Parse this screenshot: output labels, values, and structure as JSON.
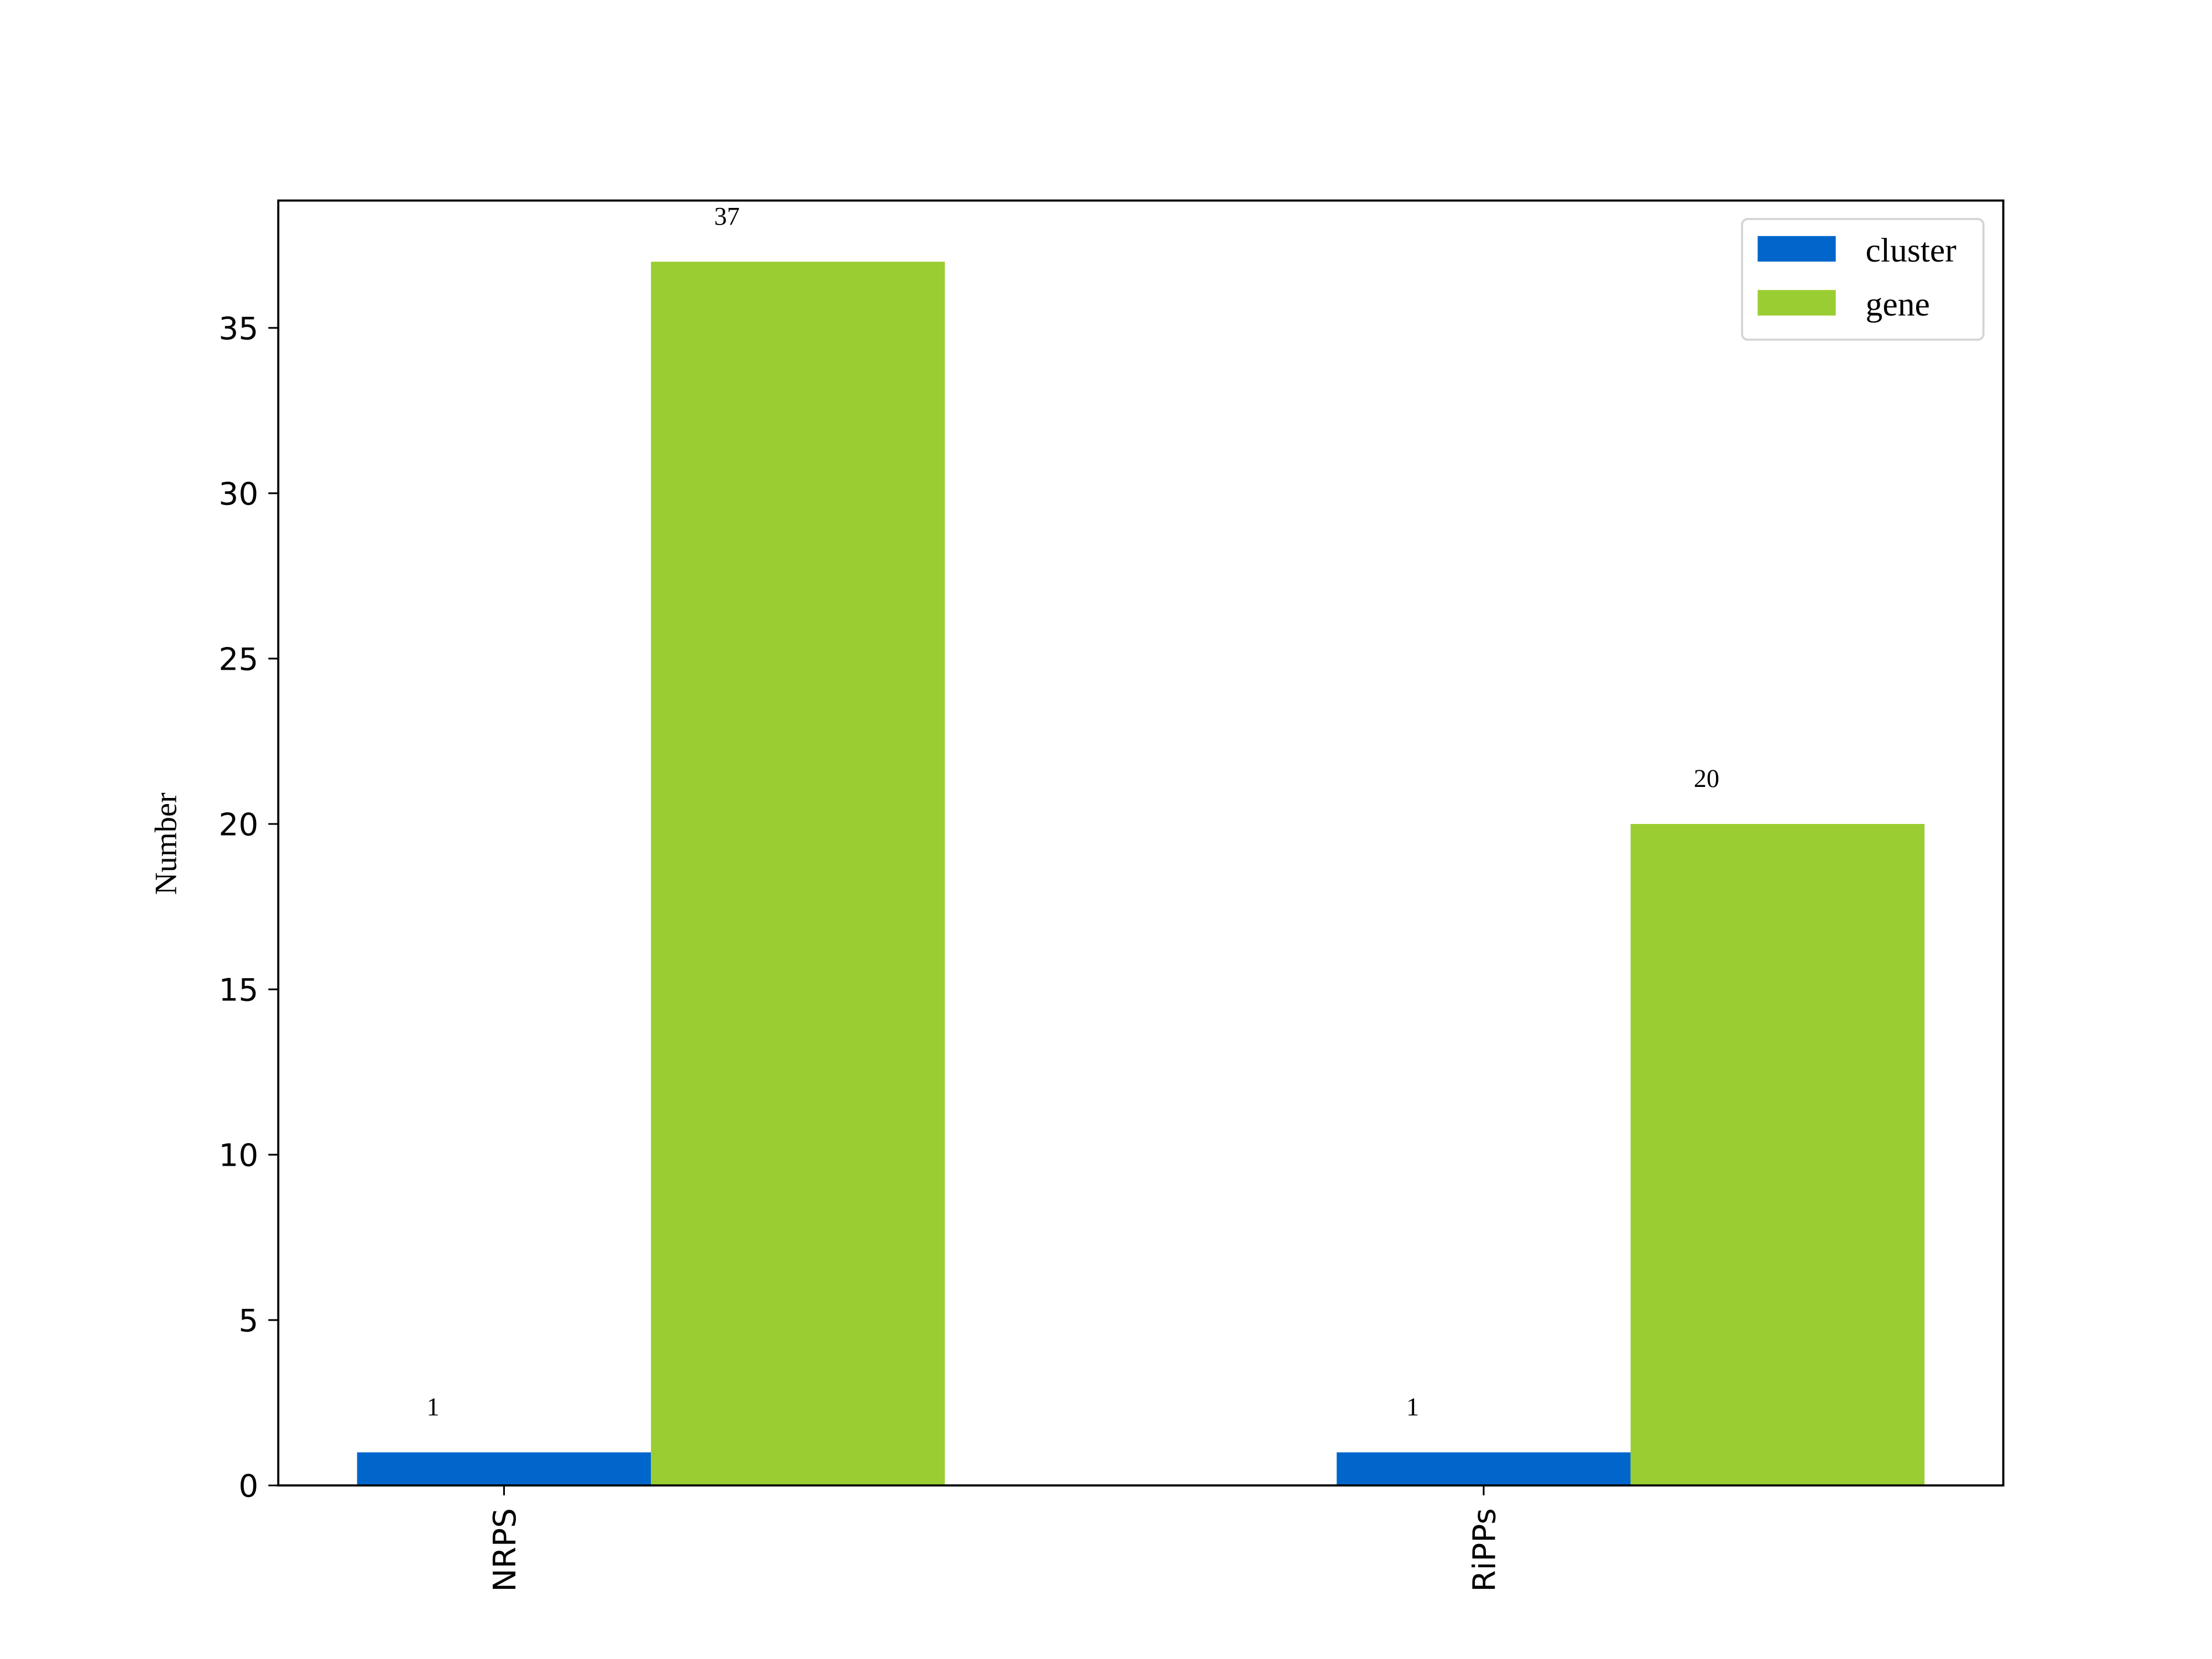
{
  "chart_data": {
    "type": "bar",
    "title": "",
    "xlabel": "",
    "ylabel": "Number",
    "categories": [
      "NRPS",
      "RiPPs"
    ],
    "series": [
      {
        "name": "cluster",
        "values": [
          1,
          1
        ],
        "color": "#0066CC"
      },
      {
        "name": "gene",
        "values": [
          37,
          20
        ],
        "color": "#9ACD32"
      }
    ],
    "ylim": [
      0,
      38.85
    ],
    "yticks": [
      0,
      5,
      10,
      15,
      20,
      25,
      30,
      35
    ],
    "data_labels": true,
    "grid": false,
    "legend": "top-right"
  }
}
